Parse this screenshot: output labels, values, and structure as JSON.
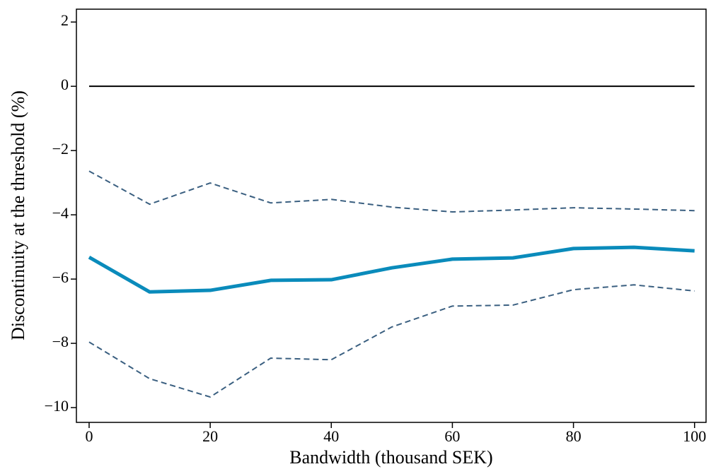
{
  "chart_data": {
    "type": "line",
    "xlabel": "Bandwidth (thousand SEK)",
    "ylabel": "Discontinuity at the threshold (%)",
    "x": [
      0,
      10,
      20,
      30,
      40,
      50,
      60,
      70,
      80,
      90,
      100
    ],
    "series": [
      {
        "color": "#0a8bbb",
        "width": 5,
        "dashed": false,
        "values": [
          -5.32,
          -6.4,
          -6.35,
          -6.04,
          -6.02,
          -5.65,
          -5.38,
          -5.34,
          -5.05,
          -5.01,
          -5.12
        ]
      },
      {
        "color": "#3a5f80",
        "width": 2,
        "dashed": true,
        "values": [
          -2.64,
          -3.67,
          -3.01,
          -3.63,
          -3.52,
          -3.76,
          -3.91,
          -3.85,
          -3.78,
          -3.82,
          -3.87
        ]
      },
      {
        "color": "#3a5f80",
        "width": 2,
        "dashed": true,
        "values": [
          -7.96,
          -9.1,
          -9.67,
          -8.46,
          -8.51,
          -7.49,
          -6.84,
          -6.81,
          -6.33,
          -6.18,
          -6.37
        ]
      }
    ],
    "reference_line": {
      "value": 0,
      "color": "#000000"
    },
    "xlim": [
      -2.1,
      101.9
    ],
    "ylim": [
      -10.46,
      2.4
    ],
    "xticks": [
      0,
      20,
      40,
      60,
      80,
      100
    ],
    "yticks": [
      {
        "value": -10,
        "label": "−10"
      },
      {
        "value": -8,
        "label": "−8"
      },
      {
        "value": -6,
        "label": "−6"
      },
      {
        "value": -4,
        "label": "−4"
      },
      {
        "value": -2,
        "label": "−2"
      },
      0,
      2
    ]
  }
}
